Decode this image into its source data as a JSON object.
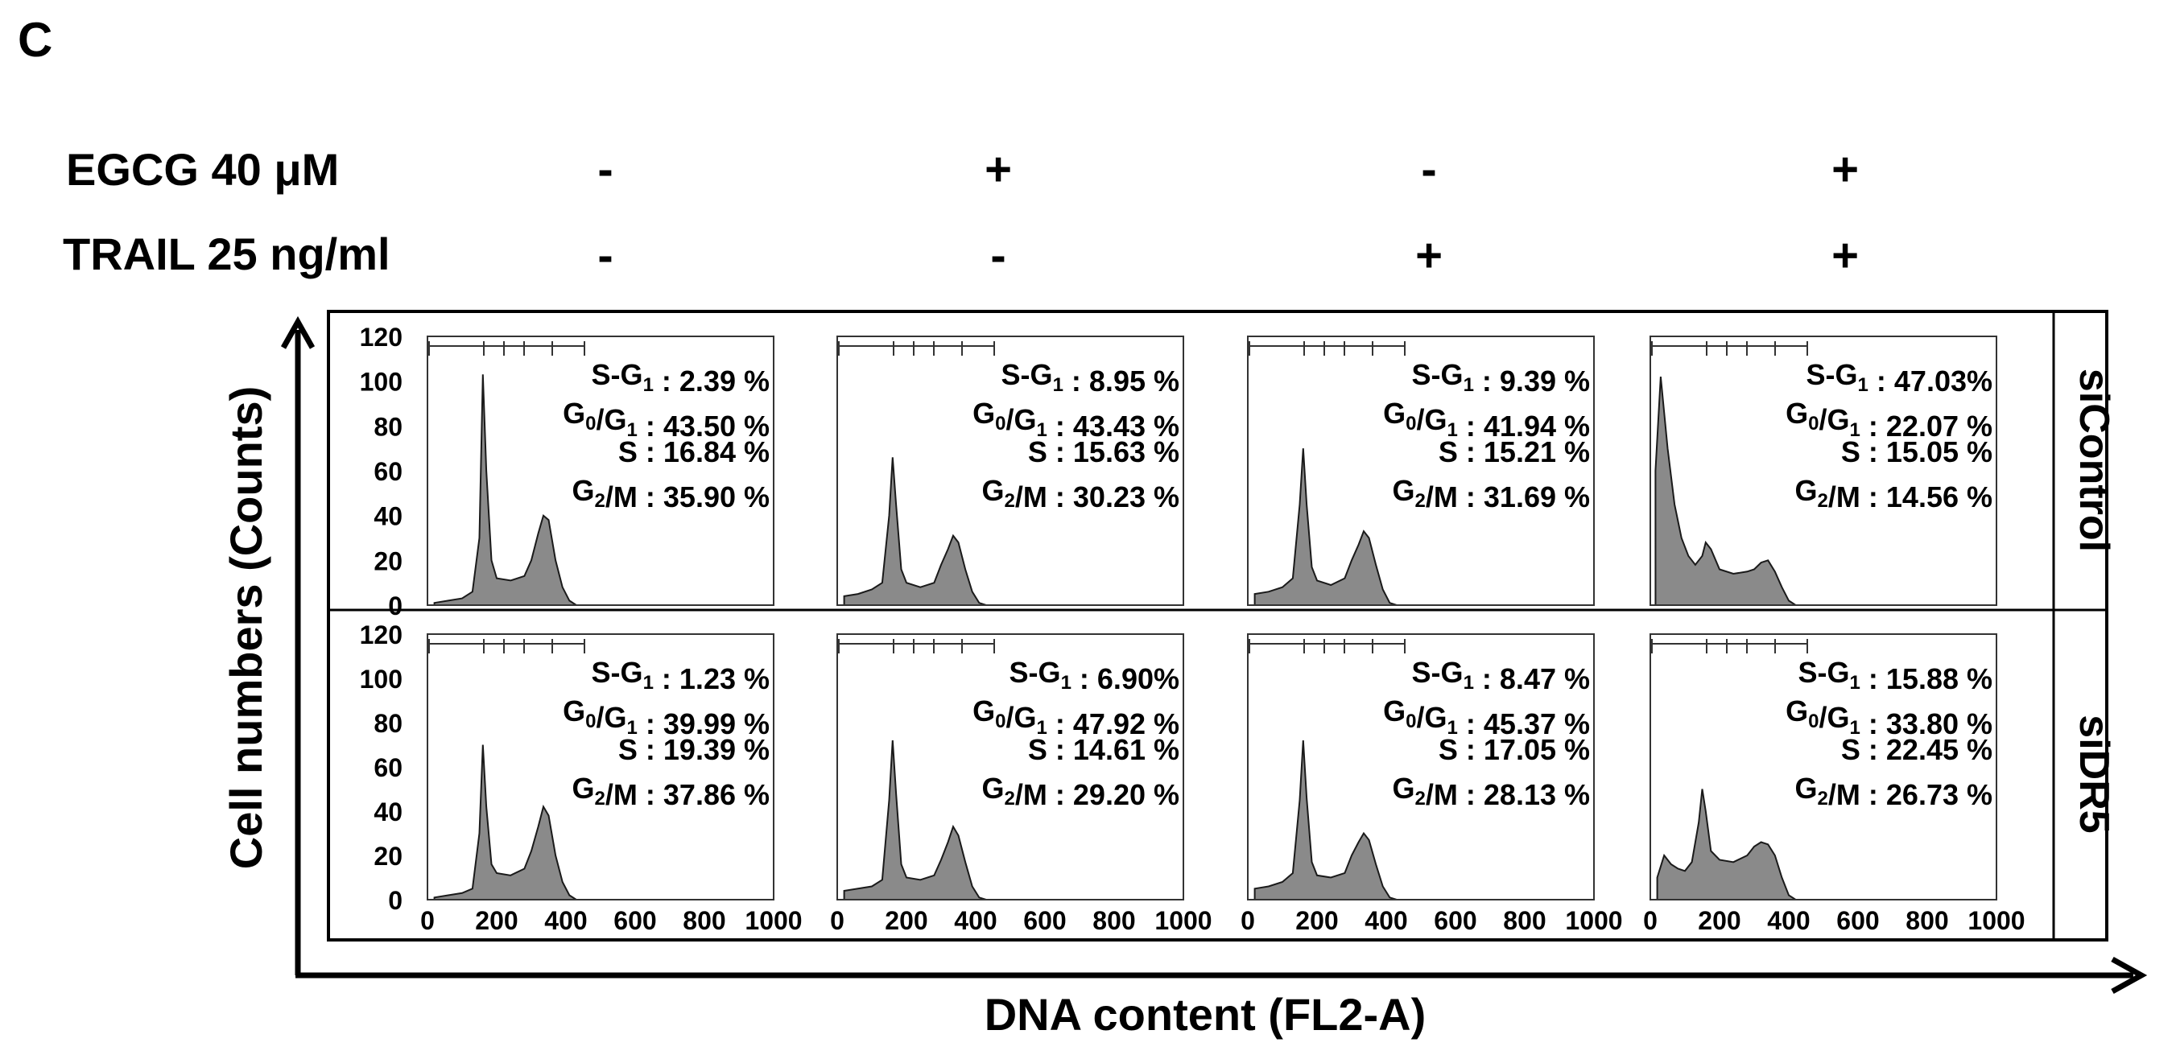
{
  "panel_letter": "C",
  "conditions": {
    "egcg_label": "EGCG 40 μM",
    "trail_label": "TRAIL 25 ng/ml",
    "egcg": [
      "-",
      "+",
      "-",
      "+"
    ],
    "trail": [
      "-",
      "-",
      "+",
      "+"
    ]
  },
  "row_labels": [
    "siControl",
    "siDR5"
  ],
  "y_axis_title": "Cell numbers (Counts)",
  "x_axis_title": "DNA content (FL2-A)",
  "colors": {
    "fill": "#8a8a8a",
    "stroke": "#1a1a1a",
    "frame": "#000000"
  },
  "chart_data": {
    "type": "area",
    "title": "",
    "xlabel": "DNA content (FL2-A)",
    "ylabel": "Cell numbers (Counts)",
    "xlim": [
      0,
      1000
    ],
    "ylim": [
      0,
      120
    ],
    "yticks": [
      "120",
      "100",
      "80",
      "60",
      "40",
      "20",
      "0"
    ],
    "xticks": [
      "0",
      "200",
      "400",
      "600",
      "800",
      "1000"
    ],
    "panels": [
      [
        {
          "stats": [
            {
              "label": "S-G",
              "sub": "1",
              "sep": " : ",
              "value": "2.39 %"
            },
            {
              "label": "G",
              "sub": "0",
              "mid": "/G",
              "sub2": "1",
              "sep": " : ",
              "value": "43.50 %"
            },
            {
              "label": "S",
              "sep": " : ",
              "value": "16.84 %"
            },
            {
              "label": "G",
              "sub": "2",
              "mid": "/M",
              "sep": " : ",
              "value": "35.90 %"
            }
          ],
          "histogram": {
            "x": [
              20,
              60,
              100,
              130,
              150,
              160,
              170,
              185,
              200,
              240,
              280,
              300,
              320,
              335,
              350,
              370,
              390,
              410,
              430
            ],
            "y": [
              1,
              2,
              3,
              6,
              30,
              103,
              60,
              20,
              12,
              11,
              13,
              20,
              32,
              40,
              38,
              20,
              8,
              2,
              0
            ]
          }
        },
        {
          "stats": [
            {
              "label": "S-G",
              "sub": "1",
              "sep": " : ",
              "value": "8.95 %"
            },
            {
              "label": "G",
              "sub": "0",
              "mid": "/G",
              "sub2": "1",
              "sep": " : ",
              "value": "43.43 %"
            },
            {
              "label": "S",
              "sep": " : ",
              "value": "15.63 %"
            },
            {
              "label": "G",
              "sub": "2",
              "mid": "/M",
              "sep": " : ",
              "value": "30.23 %"
            }
          ],
          "histogram": {
            "x": [
              20,
              60,
              100,
              130,
              150,
              160,
              170,
              185,
              200,
              240,
              280,
              300,
              320,
              335,
              350,
              370,
              390,
              410,
              430
            ],
            "y": [
              4,
              5,
              7,
              10,
              40,
              66,
              45,
              16,
              10,
              8,
              10,
              18,
              25,
              31,
              28,
              16,
              6,
              1,
              0
            ]
          }
        },
        {
          "stats": [
            {
              "label": "S-G",
              "sub": "1",
              "sep": " : ",
              "value": "9.39 %"
            },
            {
              "label": "G",
              "sub": "0",
              "mid": "/G",
              "sub2": "1",
              "sep": " : ",
              "value": "41.94 %"
            },
            {
              "label": "S",
              "sep": " : ",
              "value": "15.21 %"
            },
            {
              "label": "G",
              "sub": "2",
              "mid": "/M",
              "sep": " : ",
              "value": "31.69 %"
            }
          ],
          "histogram": {
            "x": [
              20,
              60,
              100,
              130,
              150,
              160,
              170,
              185,
              200,
              240,
              280,
              300,
              320,
              335,
              350,
              370,
              390,
              410,
              430
            ],
            "y": [
              5,
              6,
              8,
              12,
              45,
              70,
              45,
              17,
              11,
              9,
              12,
              20,
              27,
              33,
              30,
              18,
              7,
              1,
              0
            ]
          }
        },
        {
          "stats": [
            {
              "label": "S-G",
              "sub": "1",
              "sep": " : ",
              "value": "47.03%"
            },
            {
              "label": "G",
              "sub": "0",
              "mid": "/G",
              "sub2": "1",
              "sep": " : ",
              "value": "22.07 %"
            },
            {
              "label": "S",
              "sep": " : ",
              "value": "15.05 %"
            },
            {
              "label": "G",
              "sub": "2",
              "mid": "/M",
              "sep": " : ",
              "value": "14.56 %"
            }
          ],
          "histogram": {
            "x": [
              15,
              30,
              50,
              70,
              90,
              110,
              130,
              150,
              160,
              175,
              200,
              240,
              280,
              300,
              320,
              340,
              360,
              380,
              400,
              420
            ],
            "y": [
              60,
              102,
              70,
              45,
              30,
              22,
              18,
              22,
              28,
              25,
              16,
              14,
              15,
              16,
              19,
              20,
              15,
              8,
              2,
              0
            ]
          }
        }
      ],
      [
        {
          "stats": [
            {
              "label": "S-G",
              "sub": "1",
              "sep": " : ",
              "value": "1.23 %"
            },
            {
              "label": "G",
              "sub": "0",
              "mid": "/G",
              "sub2": "1",
              "sep": " : ",
              "value": "39.99 %"
            },
            {
              "label": "S",
              "sep": " : ",
              "value": "19.39 %"
            },
            {
              "label": "G",
              "sub": "2",
              "mid": "/M",
              "sep": " : ",
              "value": "37.86 %"
            }
          ],
          "histogram": {
            "x": [
              20,
              60,
              100,
              130,
              150,
              160,
              170,
              185,
              200,
              240,
              280,
              300,
              320,
              335,
              350,
              370,
              390,
              410,
              430
            ],
            "y": [
              1,
              2,
              3,
              5,
              30,
              70,
              42,
              16,
              12,
              11,
              14,
              22,
              33,
              42,
              38,
              20,
              8,
              2,
              0
            ]
          }
        },
        {
          "stats": [
            {
              "label": "S-G",
              "sub": "1",
              "sep": " : ",
              "value": "6.90%"
            },
            {
              "label": "G",
              "sub": "0",
              "mid": "/G",
              "sub2": "1",
              "sep": " : ",
              "value": "47.92 %"
            },
            {
              "label": "S",
              "sep": " : ",
              "value": "14.61 %"
            },
            {
              "label": "G",
              "sub": "2",
              "mid": "/M",
              "sep": " : ",
              "value": "29.20 %"
            }
          ],
          "histogram": {
            "x": [
              20,
              60,
              100,
              130,
              150,
              160,
              170,
              185,
              200,
              240,
              280,
              300,
              320,
              335,
              350,
              370,
              390,
              410,
              430
            ],
            "y": [
              4,
              5,
              6,
              9,
              45,
              72,
              48,
              16,
              10,
              9,
              11,
              18,
              26,
              33,
              29,
              17,
              6,
              1,
              0
            ]
          }
        },
        {
          "stats": [
            {
              "label": "S-G",
              "sub": "1",
              "sep": " : ",
              "value": "8.47 %"
            },
            {
              "label": "G",
              "sub": "0",
              "mid": "/G",
              "sub2": "1",
              "sep": " : ",
              "value": "45.37 %"
            },
            {
              "label": "S",
              "sep": " : ",
              "value": "17.05 %"
            },
            {
              "label": "G",
              "sub": "2",
              "mid": "/M",
              "sep": " : ",
              "value": "28.13 %"
            }
          ],
          "histogram": {
            "x": [
              20,
              60,
              100,
              130,
              150,
              160,
              170,
              185,
              200,
              240,
              280,
              300,
              320,
              335,
              350,
              370,
              390,
              410,
              430
            ],
            "y": [
              5,
              6,
              8,
              12,
              45,
              72,
              46,
              17,
              11,
              10,
              12,
              20,
              26,
              30,
              27,
              16,
              6,
              1,
              0
            ]
          }
        },
        {
          "stats": [
            {
              "label": "S-G",
              "sub": "1",
              "sep": " : ",
              "value": "15.88 %"
            },
            {
              "label": "G",
              "sub": "0",
              "mid": "/G",
              "sub2": "1",
              "sep": " : ",
              "value": "33.80 %"
            },
            {
              "label": "S",
              "sep": " : ",
              "value": "22.45 %"
            },
            {
              "label": "G",
              "sub": "2",
              "mid": "/M",
              "sep": " : ",
              "value": "26.73 %"
            }
          ],
          "histogram": {
            "x": [
              20,
              40,
              60,
              80,
              100,
              120,
              140,
              150,
              160,
              175,
              200,
              240,
              280,
              300,
              320,
              340,
              360,
              380,
              400,
              420
            ],
            "y": [
              10,
              20,
              16,
              14,
              13,
              17,
              35,
              50,
              40,
              22,
              18,
              17,
              20,
              24,
              26,
              25,
              20,
              10,
              2,
              0
            ]
          }
        }
      ]
    ]
  }
}
